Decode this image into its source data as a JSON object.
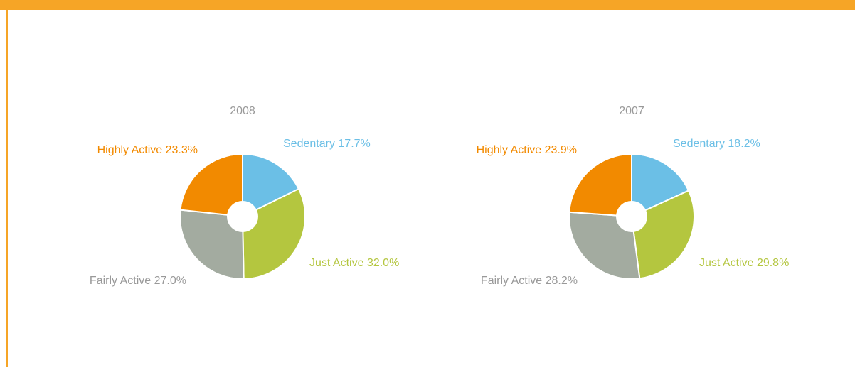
{
  "chart_data": [
    {
      "type": "pie",
      "title": "2008",
      "categories": [
        "Sedentary",
        "Just Active",
        "Fairly Active",
        "Highly Active"
      ],
      "values": [
        17.7,
        32.0,
        27.0,
        23.3
      ],
      "value_labels": [
        "17.7%",
        "32.0%",
        "27.0%",
        "23.3%"
      ],
      "colors": [
        "#6bbfe6",
        "#b4c63f",
        "#a3aba0",
        "#f28a00"
      ]
    },
    {
      "type": "pie",
      "title": "2007",
      "categories": [
        "Sedentary",
        "Just Active",
        "Fairly Active",
        "Highly Active"
      ],
      "values": [
        18.2,
        29.8,
        28.2,
        23.9
      ],
      "value_labels": [
        "18.2%",
        "29.8%",
        "28.2%",
        "23.9%"
      ],
      "colors": [
        "#6bbfe6",
        "#b4c63f",
        "#a3aba0",
        "#f28a00"
      ]
    }
  ]
}
